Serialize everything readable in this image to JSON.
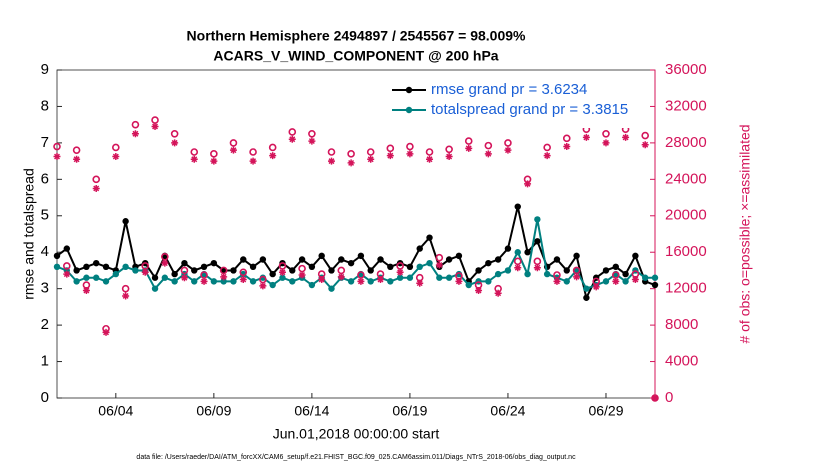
{
  "chart_data": {
    "type": "line",
    "title": "Northern Hemisphere 2494897 / 2545567 = 98.009%",
    "subtitle": "ACARS_V_WIND_COMPONENT @ 200 hPa",
    "x_label": "Jun.01,2018 00:00:00 start",
    "y_label": "rmse and totalspread",
    "y2_label": "# of obs: o=possible; ×=assimilated",
    "footnote": "data file: /Users/raeder/DAI/ATM_forcXX/CAM6_setup/f.e21.FHIST_BGC.f09_025.CAM6assim.011/Diags_NTrS_2018-06/obs_diag_output.nc",
    "legend": "upper right",
    "xlim": [
      1,
      31.5
    ],
    "xticks": [
      {
        "value": 4,
        "label": "06/04"
      },
      {
        "value": 9,
        "label": "06/09"
      },
      {
        "value": 14,
        "label": "06/14"
      },
      {
        "value": 19,
        "label": "06/19"
      },
      {
        "value": 24,
        "label": "06/24"
      },
      {
        "value": 29,
        "label": "06/29"
      }
    ],
    "ylim": [
      0,
      9
    ],
    "yticks": [
      0,
      1,
      2,
      3,
      4,
      5,
      6,
      7,
      8,
      9
    ],
    "y2lim": [
      0,
      36000
    ],
    "y2ticks": [
      0,
      4000,
      8000,
      12000,
      16000,
      20000,
      24000,
      28000,
      32000,
      36000
    ],
    "x": [
      1,
      1.5,
      2,
      2.5,
      3,
      3.5,
      4,
      4.5,
      5,
      5.5,
      6,
      6.5,
      7,
      7.5,
      8,
      8.5,
      9,
      9.5,
      10,
      10.5,
      11,
      11.5,
      12,
      12.5,
      13,
      13.5,
      14,
      14.5,
      15,
      15.5,
      16,
      16.5,
      17,
      17.5,
      18,
      18.5,
      19,
      19.5,
      20,
      20.5,
      21,
      21.5,
      22,
      22.5,
      23,
      23.5,
      24,
      24.5,
      25,
      25.5,
      26,
      26.5,
      27,
      27.5,
      28,
      28.5,
      29,
      29.5,
      30,
      30.5,
      31,
      31.5
    ],
    "series": [
      {
        "name": "rmse grand pr = 3.6234",
        "color": "#000000",
        "marker": "dot",
        "axis": "y",
        "values": [
          3.9,
          4.1,
          3.5,
          3.6,
          3.7,
          3.6,
          3.5,
          4.85,
          3.6,
          3.7,
          3.3,
          3.9,
          3.4,
          3.7,
          3.5,
          3.6,
          3.7,
          3.5,
          3.5,
          3.8,
          3.6,
          3.8,
          3.4,
          3.7,
          3.5,
          3.8,
          3.6,
          3.9,
          3.5,
          3.8,
          3.7,
          3.9,
          3.5,
          3.8,
          3.6,
          3.7,
          3.6,
          4.1,
          4.4,
          3.6,
          3.8,
          3.9,
          3.2,
          3.5,
          3.7,
          3.8,
          4.1,
          5.25,
          4.0,
          4.3,
          3.6,
          3.8,
          3.5,
          3.9,
          2.75,
          3.3,
          3.5,
          3.6,
          3.4,
          3.9,
          3.2,
          3.1
        ]
      },
      {
        "name": "totalspread grand pr = 3.3815",
        "color": "#008080",
        "marker": "dot",
        "axis": "y",
        "values": [
          3.6,
          3.5,
          3.2,
          3.3,
          3.3,
          3.2,
          3.4,
          3.6,
          3.5,
          3.5,
          3.0,
          3.3,
          3.2,
          3.4,
          3.2,
          3.4,
          3.2,
          3.2,
          3.2,
          3.4,
          3.2,
          3.3,
          3.1,
          3.3,
          3.2,
          3.3,
          3.1,
          3.3,
          3.0,
          3.3,
          3.2,
          3.4,
          3.2,
          3.3,
          3.2,
          3.3,
          3.3,
          3.6,
          3.7,
          3.3,
          3.3,
          3.4,
          3.1,
          3.2,
          3.2,
          3.4,
          3.5,
          4.0,
          3.4,
          4.9,
          3.4,
          3.3,
          3.2,
          3.5,
          3.0,
          3.1,
          3.2,
          3.4,
          3.2,
          3.5,
          3.3,
          3.3
        ]
      },
      {
        "color": "#d4145a",
        "marker": "circle",
        "axis": "y2",
        "values": [
          27600,
          14500,
          27200,
          12400,
          24000,
          7600,
          27500,
          12000,
          30000,
          14500,
          30500,
          15500,
          29000,
          14000,
          27000,
          13500,
          26800,
          14000,
          28000,
          13800,
          27000,
          13000,
          27500,
          14500,
          29200,
          14200,
          29000,
          13600,
          27000,
          14000,
          26800,
          13500,
          27000,
          13600,
          27400,
          14500,
          27600,
          13200,
          27000,
          15400,
          27300,
          13400,
          28200,
          12400,
          27700,
          12000,
          28000,
          15000,
          24000,
          15000,
          27500,
          13500,
          28500,
          14000,
          29500,
          12800,
          29000,
          13500,
          29500,
          13600,
          28800,
          0
        ]
      },
      {
        "color": "#d4145a",
        "marker": "asterisk",
        "axis": "y2",
        "values": [
          26500,
          13600,
          26200,
          11800,
          23000,
          7200,
          26500,
          11200,
          29000,
          13800,
          29800,
          14800,
          28000,
          13200,
          26200,
          12800,
          26000,
          13300,
          27200,
          13000,
          26000,
          12300,
          26600,
          13800,
          28400,
          13500,
          28200,
          13000,
          26000,
          13300,
          25800,
          12800,
          26200,
          13000,
          26600,
          13800,
          26800,
          12600,
          26200,
          14600,
          26500,
          12800,
          27400,
          11800,
          26800,
          11500,
          27200,
          14300,
          23500,
          14300,
          26600,
          12800,
          27600,
          13300,
          28600,
          12200,
          28000,
          12800,
          28600,
          13000,
          27800,
          0
        ]
      }
    ]
  }
}
